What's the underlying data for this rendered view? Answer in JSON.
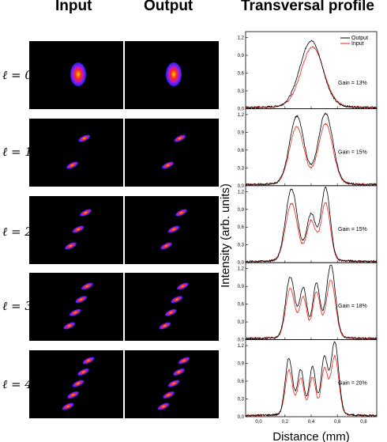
{
  "headers": {
    "input": "Input",
    "output": "Output",
    "profile": "Transversal profile"
  },
  "rows": [
    {
      "label": "ℓ = 0",
      "gain": "Gain = 13%",
      "lobes": 1
    },
    {
      "label": "ℓ = 1",
      "gain": "Gain = 15%",
      "lobes": 2
    },
    {
      "label": "ℓ = 2",
      "gain": "Gain = 15%",
      "lobes": 3
    },
    {
      "label": "ℓ = 3",
      "gain": "Gain = 18%",
      "lobes": 4
    },
    {
      "label": "ℓ = 4",
      "gain": "Gain = 20%",
      "lobes": 5
    }
  ],
  "colors": {
    "output": "#000000",
    "input": "#e8231e",
    "beam_bg": "#000000"
  },
  "chart_data": {
    "type": "line",
    "xlabel": "Distance (mm)",
    "ylabel": "Intensity (arb. units)",
    "xlim": [
      -0.1,
      0.9
    ],
    "ylim": [
      0,
      1.3
    ],
    "xticks": [
      "0,0",
      "0,2",
      "0,4",
      "0,6",
      "0,8"
    ],
    "yticks": [
      "0,0",
      "0,3",
      "0,6",
      "0,9",
      "1,2"
    ],
    "legend": {
      "placement": "top-right",
      "entries": [
        "Output",
        "Input"
      ]
    },
    "panels": [
      {
        "gain": "Gain = 13%",
        "series": [
          {
            "name": "Output",
            "peaks": [
              [
                0.4,
                1.1,
                0.085
              ]
            ]
          },
          {
            "name": "Input",
            "peaks": [
              [
                0.41,
                1.0,
                0.085
              ]
            ]
          }
        ]
      },
      {
        "gain": "Gain = 15%",
        "series": [
          {
            "name": "Output",
            "peaks": [
              [
                0.29,
                1.13,
                0.055
              ],
              [
                0.51,
                1.18,
                0.055
              ]
            ]
          },
          {
            "name": "Input",
            "peaks": [
              [
                0.29,
                0.95,
                0.055
              ],
              [
                0.51,
                1.0,
                0.055
              ]
            ]
          }
        ]
      },
      {
        "gain": "Gain = 15%",
        "series": [
          {
            "name": "Output",
            "peaks": [
              [
                0.25,
                1.2,
                0.045
              ],
              [
                0.4,
                0.78,
                0.035
              ],
              [
                0.51,
                1.22,
                0.035
              ]
            ]
          },
          {
            "name": "Input",
            "peaks": [
              [
                0.25,
                0.96,
                0.045
              ],
              [
                0.4,
                0.66,
                0.035
              ],
              [
                0.51,
                0.97,
                0.035
              ]
            ]
          }
        ]
      },
      {
        "gain": "Gain = 18%",
        "series": [
          {
            "name": "Output",
            "peaks": [
              [
                0.24,
                1.02,
                0.035
              ],
              [
                0.34,
                0.82,
                0.028
              ],
              [
                0.44,
                0.9,
                0.028
              ],
              [
                0.55,
                1.22,
                0.035
              ]
            ]
          },
          {
            "name": "Input",
            "peaks": [
              [
                0.24,
                0.82,
                0.035
              ],
              [
                0.34,
                0.66,
                0.028
              ],
              [
                0.44,
                0.76,
                0.028
              ],
              [
                0.55,
                0.97,
                0.035
              ]
            ]
          }
        ]
      },
      {
        "gain": "Gain = 20%",
        "series": [
          {
            "name": "Output",
            "peaks": [
              [
                0.23,
                0.95,
                0.028
              ],
              [
                0.32,
                0.75,
                0.025
              ],
              [
                0.41,
                0.8,
                0.025
              ],
              [
                0.5,
                0.95,
                0.025
              ],
              [
                0.58,
                1.22,
                0.03
              ]
            ]
          },
          {
            "name": "Input",
            "peaks": [
              [
                0.23,
                0.75,
                0.028
              ],
              [
                0.32,
                0.6,
                0.025
              ],
              [
                0.41,
                0.62,
                0.025
              ],
              [
                0.5,
                0.75,
                0.025
              ],
              [
                0.58,
                0.98,
                0.03
              ]
            ]
          }
        ]
      }
    ]
  }
}
